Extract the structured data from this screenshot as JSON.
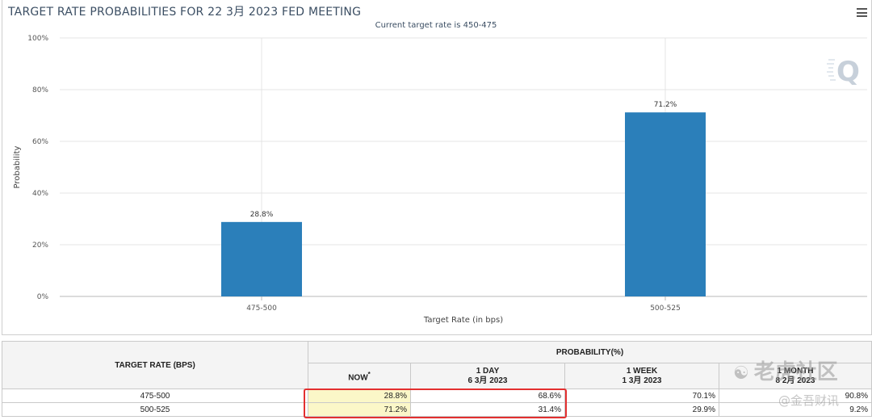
{
  "chart": {
    "title": "TARGET RATE PROBABILITIES FOR 22 3月 2023 FED MEETING",
    "subtitle": "Current target rate is 450-475"
  },
  "chart_data": {
    "type": "bar",
    "title": "TARGET RATE PROBABILITIES FOR 22 3月 2023 FED MEETING",
    "subtitle": "Current target rate is 450-475",
    "categories": [
      "475-500",
      "500-525"
    ],
    "values": [
      28.8,
      71.2
    ],
    "data_labels": [
      "28.8%",
      "71.2%"
    ],
    "xlabel": "Target Rate (in bps)",
    "ylabel": "Probability",
    "ylim": [
      0,
      100
    ],
    "yticks": [
      "0%",
      "20%",
      "40%",
      "60%",
      "80%",
      "100%"
    ],
    "ytick_values": [
      0,
      20,
      40,
      60,
      80,
      100
    ],
    "grid": true,
    "colors": {
      "bar": "#2b7fba"
    }
  },
  "table": {
    "header_rate": "TARGET RATE (BPS)",
    "header_prob": "PROBABILITY(%)",
    "columns": [
      {
        "label": "NOW",
        "marker": "*",
        "date": ""
      },
      {
        "label": "1 DAY",
        "date": "6 3月 2023"
      },
      {
        "label": "1 WEEK",
        "date": "1 3月 2023"
      },
      {
        "label": "1 MONTH",
        "date": "8 2月 2023"
      }
    ],
    "rows": [
      {
        "rate": "475-500",
        "values": [
          "28.8%",
          "68.6%",
          "70.1%",
          "90.8%"
        ]
      },
      {
        "rate": "500-525",
        "values": [
          "71.2%",
          "31.4%",
          "29.9%",
          "9.2%"
        ]
      }
    ]
  },
  "watermarks": {
    "line1": "老虎社区",
    "line2": "@金吾财讯"
  }
}
